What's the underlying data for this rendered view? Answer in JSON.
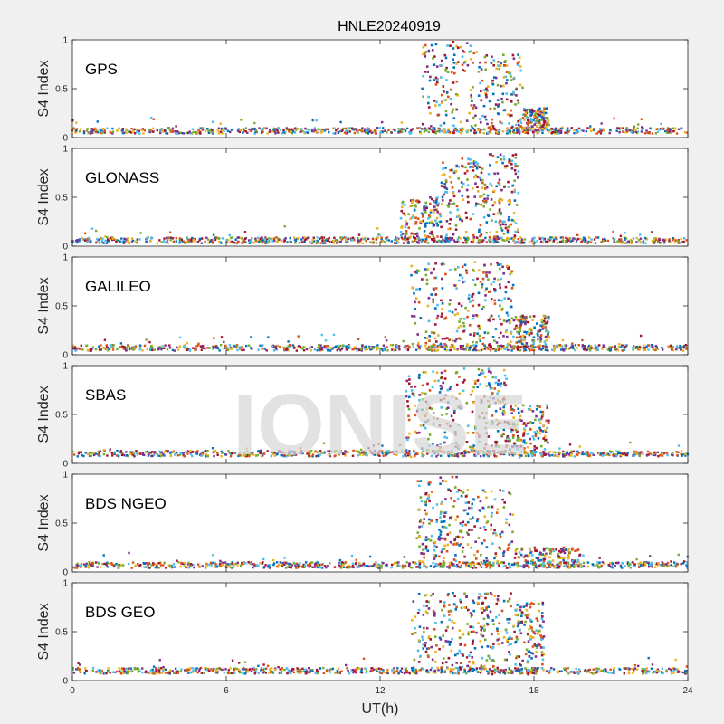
{
  "figure": {
    "title": "HNLE20240919",
    "xlabel": "UT(h)",
    "watermark": "IONISE",
    "background": "#f0f0f0"
  },
  "chart_data": {
    "type": "scatter",
    "title": "HNLE20240919",
    "xlabel": "UT(h)",
    "ylabel": "S4 Index",
    "xlim": [
      0,
      24
    ],
    "ylim": [
      0,
      1
    ],
    "xticks": [
      "0",
      "6",
      "12",
      "18",
      "24"
    ],
    "yticks": [
      "0",
      "0.5",
      "1"
    ],
    "grid": false,
    "colors": [
      "#0072bd",
      "#d95319",
      "#edb120",
      "#7e2f8e",
      "#77ac30",
      "#4dbeee",
      "#a2142f"
    ],
    "panels": [
      {
        "name": "GPS",
        "quiet_level": 0.07,
        "bursts": [
          {
            "start": 13.6,
            "end": 15.8,
            "peak": 0.98
          },
          {
            "start": 15.8,
            "end": 17.6,
            "peak": 0.85
          },
          {
            "start": 17.6,
            "end": 18.6,
            "peak": 0.3
          }
        ]
      },
      {
        "name": "GLONASS",
        "quiet_level": 0.06,
        "bursts": [
          {
            "start": 12.8,
            "end": 14.4,
            "peak": 0.5
          },
          {
            "start": 14.4,
            "end": 16.0,
            "peak": 0.9
          },
          {
            "start": 16.0,
            "end": 17.4,
            "peak": 0.95
          }
        ]
      },
      {
        "name": "GALILEO",
        "quiet_level": 0.07,
        "bursts": [
          {
            "start": 13.2,
            "end": 15.6,
            "peak": 0.95
          },
          {
            "start": 15.6,
            "end": 17.2,
            "peak": 0.95
          },
          {
            "start": 17.2,
            "end": 18.6,
            "peak": 0.4
          }
        ]
      },
      {
        "name": "SBAS",
        "quiet_level": 0.1,
        "bursts": [
          {
            "start": 13.0,
            "end": 15.2,
            "peak": 0.95
          },
          {
            "start": 15.2,
            "end": 17.0,
            "peak": 0.98
          },
          {
            "start": 17.0,
            "end": 18.6,
            "peak": 0.6
          }
        ]
      },
      {
        "name": "BDS NGEO",
        "quiet_level": 0.07,
        "bursts": [
          {
            "start": 13.4,
            "end": 15.0,
            "peak": 0.98
          },
          {
            "start": 15.0,
            "end": 17.2,
            "peak": 0.85
          },
          {
            "start": 17.2,
            "end": 19.8,
            "peak": 0.25
          }
        ]
      },
      {
        "name": "BDS GEO",
        "quiet_level": 0.1,
        "bursts": [
          {
            "start": 13.2,
            "end": 15.4,
            "peak": 0.9
          },
          {
            "start": 15.4,
            "end": 17.2,
            "peak": 0.9
          },
          {
            "start": 17.2,
            "end": 18.4,
            "peak": 0.8
          }
        ]
      }
    ]
  }
}
